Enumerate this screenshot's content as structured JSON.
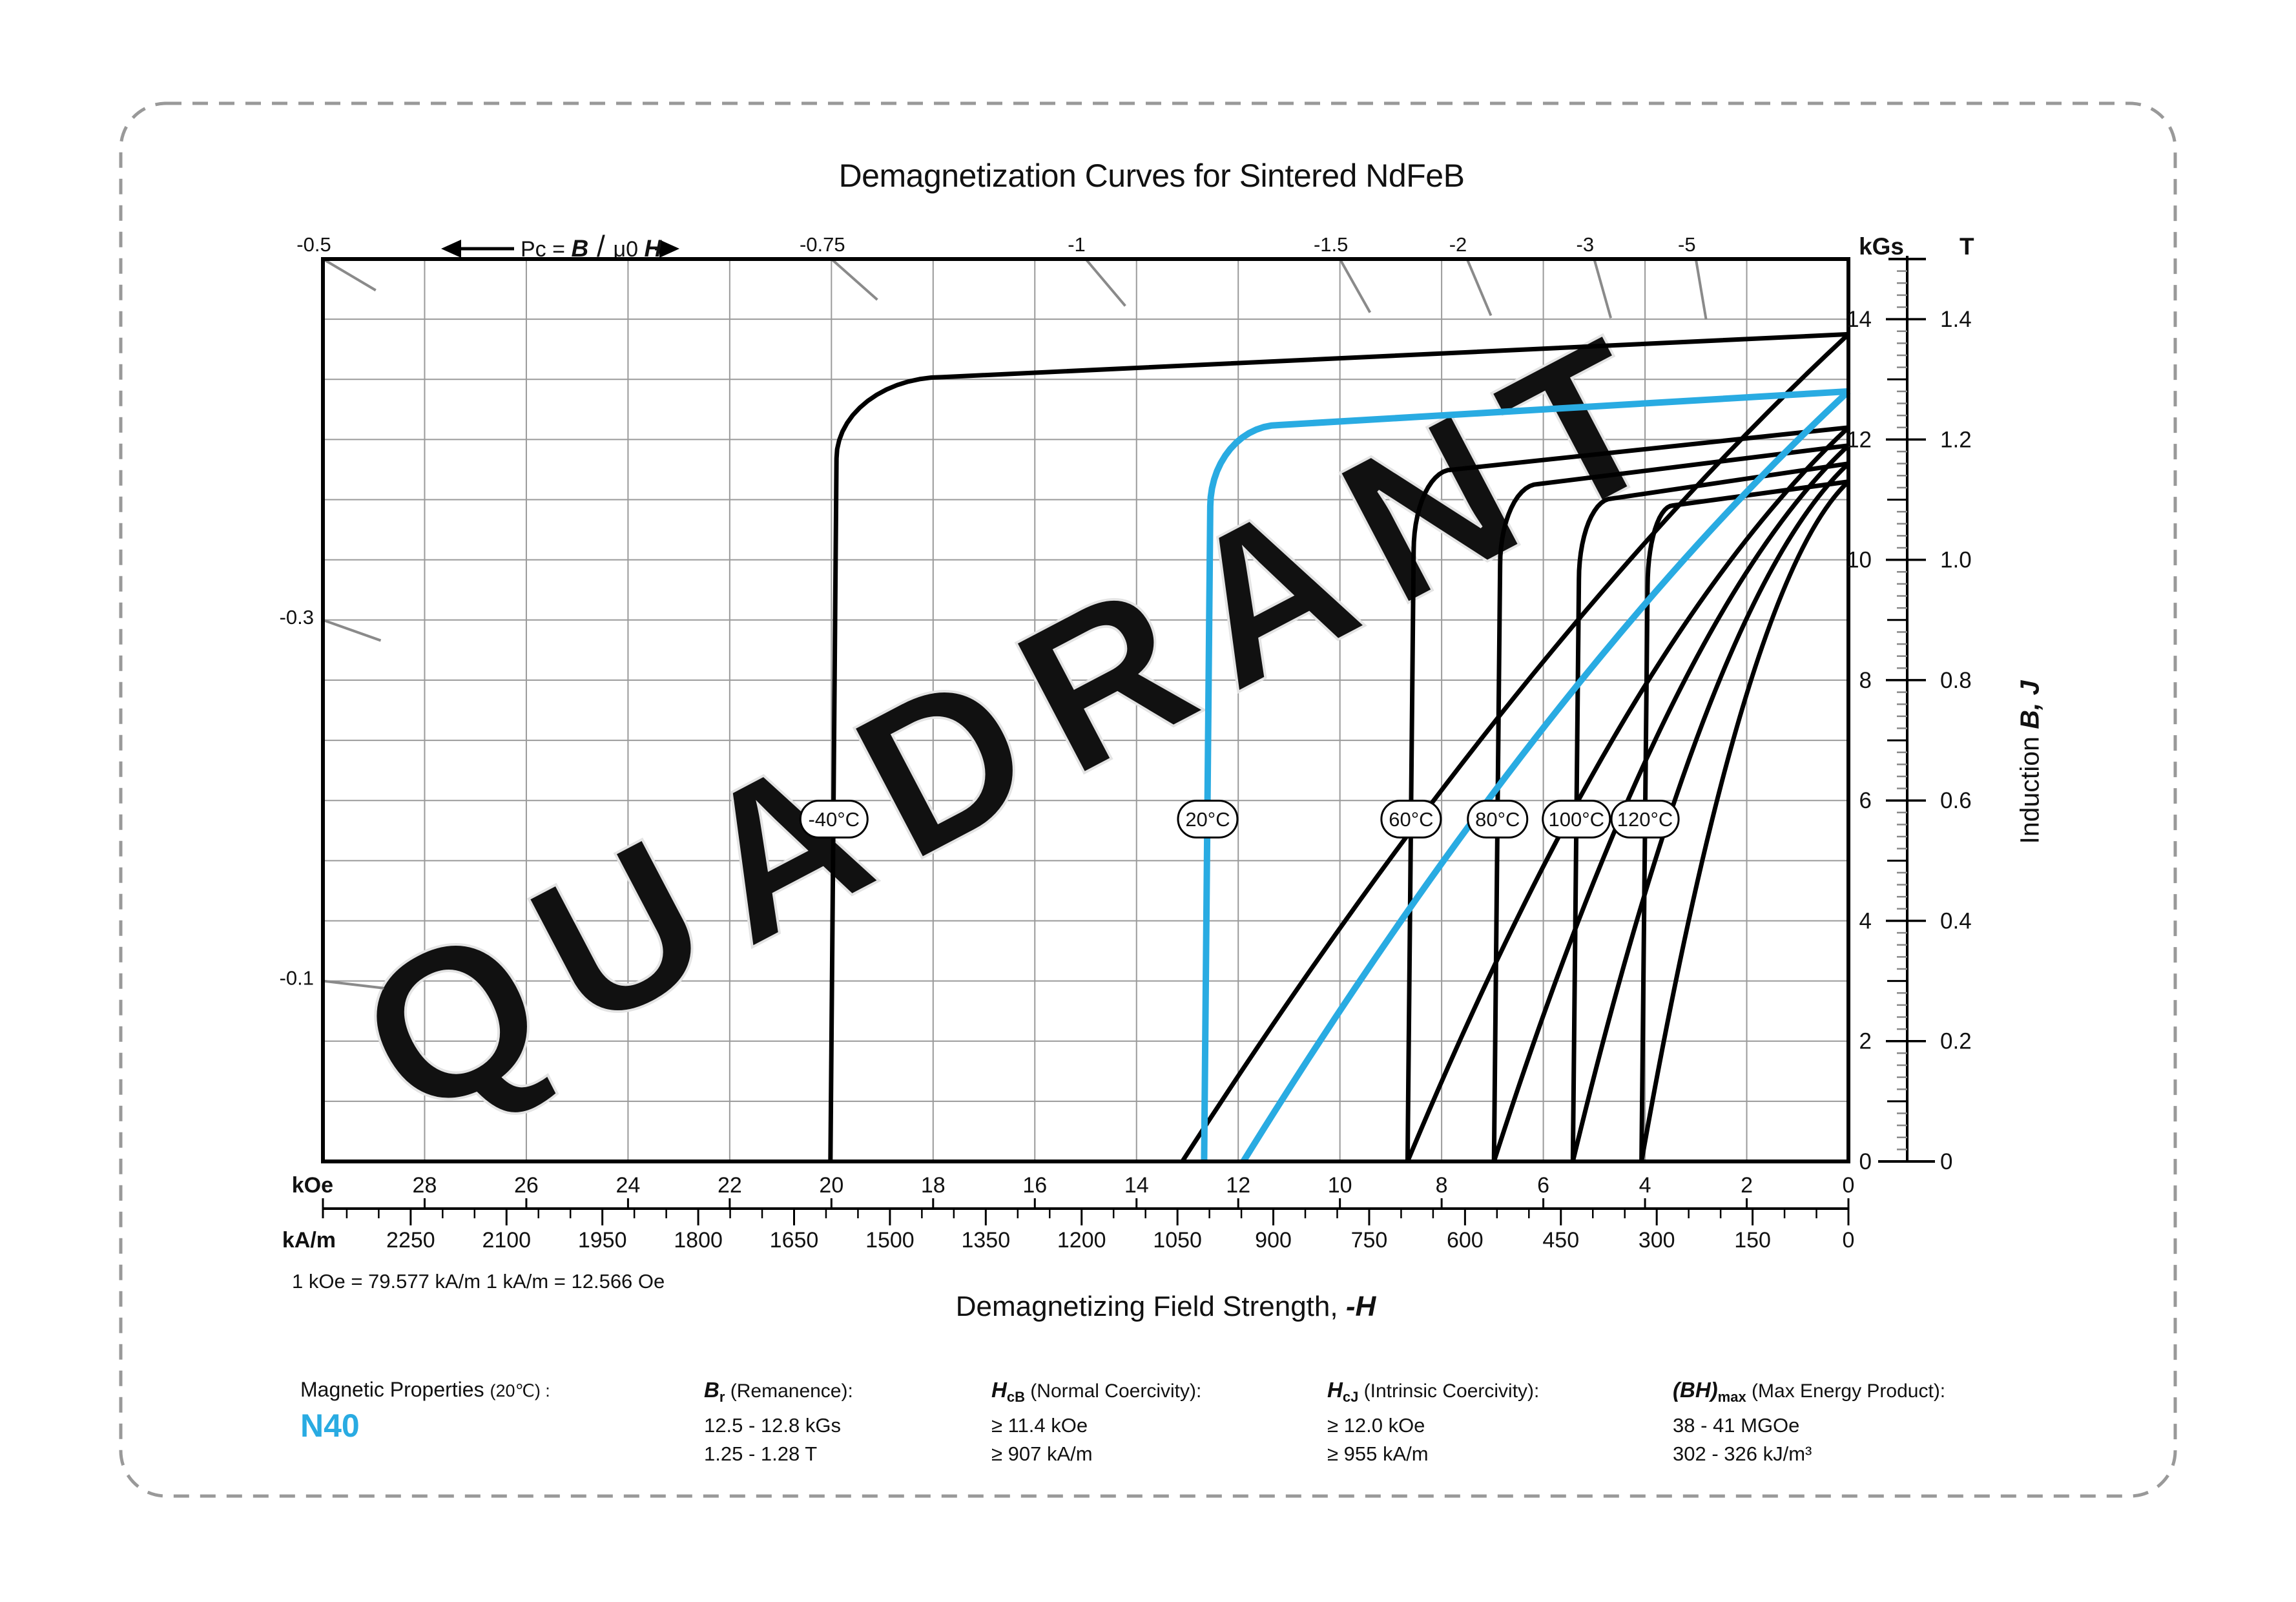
{
  "page": {
    "watermark": "QUADRANT",
    "accent_color": "#29ABE2",
    "grid_color": "#9a9a9a",
    "load_line_color": "#8a8a8a",
    "border_color": "#999999"
  },
  "chart_data": {
    "type": "line",
    "title": "Demagnetization Curves for Sintered NdFeB",
    "conversion_note": "1 kOe = 79.577 kA/m   1 kA/m = 12.566 Oe",
    "x_axis": {
      "title_text": "Demagnetizing Field Strength, ",
      "title_symbol": "-H",
      "unit_primary": "kOe",
      "unit_secondary": "kA/m",
      "range_kOe": [
        0,
        30
      ],
      "kOe_labels": [
        28,
        26,
        24,
        22,
        20,
        18,
        16,
        14,
        12,
        10,
        8,
        6,
        4,
        2,
        0
      ],
      "kAm_labels": [
        2250,
        2100,
        1950,
        1800,
        1650,
        1500,
        1350,
        1200,
        1050,
        900,
        750,
        600,
        450,
        300,
        150,
        0
      ],
      "kAm_minor_step": 50,
      "kAm_per_kOe": 79.577
    },
    "y_axis": {
      "title_text": "Induction ",
      "title_symbol": "B, J",
      "unit_left": "kGs",
      "unit_right": "T",
      "range_kGs": [
        0,
        15
      ],
      "kGs_labels": [
        14,
        12,
        10,
        8,
        6,
        4,
        2,
        0
      ],
      "T_labels": [
        "1.4",
        "1.2",
        "1.0",
        "0.8",
        "0.6",
        "0.4",
        "0.2",
        "0"
      ],
      "minor_step_kGs": 0.2
    },
    "load_lines": {
      "formula_prefix": "Pc = ",
      "formula_B": "B",
      "formula_slash": "/",
      "formula_mu": "μ0 ",
      "formula_H": "H",
      "top": [
        {
          "label": "-0.5",
          "H_kOe": 30
        },
        {
          "label": "-0.75",
          "H_kOe": 20
        },
        {
          "label": "-1",
          "H_kOe": 15
        },
        {
          "label": "-1.5",
          "H_kOe": 10
        },
        {
          "label": "-2",
          "H_kOe": 7.5
        },
        {
          "label": "-3",
          "H_kOe": 5
        },
        {
          "label": "-5",
          "H_kOe": 3
        }
      ],
      "left": [
        {
          "label": "-0.3",
          "B_kGs": 9
        },
        {
          "label": "-0.1",
          "B_kGs": 3
        }
      ]
    },
    "series": [
      {
        "name": "-40°C",
        "Br_kGs": 13.75,
        "HcJ_kOe": 19.9,
        "slope": 0.04,
        "knee_start_kOe": 17.8,
        "HB0_kOe": 13.1,
        "highlight": false
      },
      {
        "name": "60°C",
        "Br_kGs": 12.2,
        "HcJ_kOe": 8.55,
        "slope": 0.09,
        "knee_start_kOe": 7.8,
        "HB0_kOe": 8.67,
        "highlight": false
      },
      {
        "name": "80°C",
        "Br_kGs": 11.9,
        "HcJ_kOe": 6.85,
        "slope": 0.105,
        "knee_start_kOe": 6.1,
        "HB0_kOe": 6.97,
        "highlight": false
      },
      {
        "name": "100°C",
        "Br_kGs": 11.6,
        "HcJ_kOe": 5.3,
        "slope": 0.125,
        "knee_start_kOe": 4.65,
        "HB0_kOe": 5.42,
        "highlight": false
      },
      {
        "name": "120°C",
        "Br_kGs": 11.3,
        "HcJ_kOe": 3.95,
        "slope": 0.115,
        "knee_start_kOe": 3.45,
        "HB0_kOe": 4.07,
        "highlight": false
      },
      {
        "name": "20°C",
        "Br_kGs": 12.8,
        "HcJ_kOe": 12.55,
        "slope": 0.05,
        "knee_start_kOe": 11.2,
        "HB0_kOe": 11.9,
        "highlight": true
      }
    ],
    "legend_position": "on-curve-ovals",
    "grid": true
  },
  "properties": {
    "heading": "Magnetic Properties ",
    "heading_note": "(20℃) :",
    "grade": "N40",
    "items": [
      {
        "sym": "B",
        "sub": "r",
        "label": "(Remanence):",
        "lines": [
          "12.5 - 12.8 kGs",
          "1.25 - 1.28 T"
        ]
      },
      {
        "sym": "H",
        "sub": "cB",
        "label": "(Normal Coercivity):",
        "lines": [
          "≥ 11.4 kOe",
          "≥ 907 kA/m"
        ]
      },
      {
        "sym": "H",
        "sub": "cJ",
        "label": "(Intrinsic Coercivity):",
        "lines": [
          "≥ 12.0 kOe",
          "≥ 955 kA/m"
        ]
      },
      {
        "sym": "(BH)",
        "sub": "max",
        "label": "(Max Energy Product):",
        "lines": [
          "38 - 41 MGOe",
          "302 - 326 kJ/m³"
        ]
      }
    ]
  }
}
